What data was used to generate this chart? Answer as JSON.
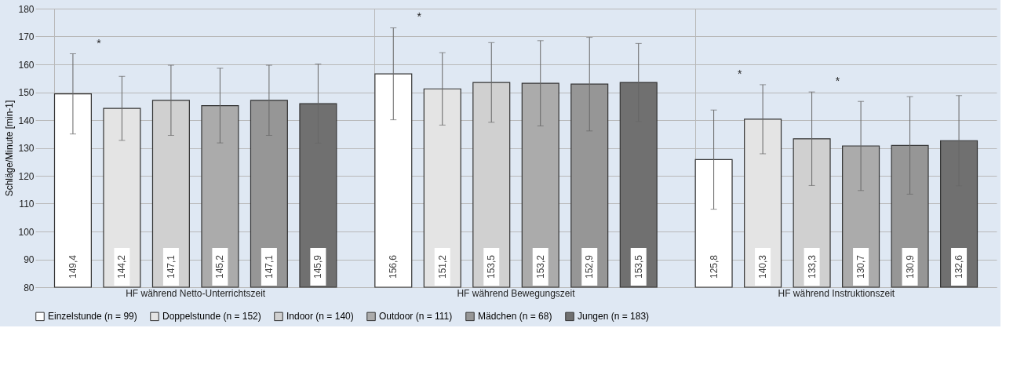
{
  "chart_data": {
    "type": "bar",
    "ylabel": "Schläge/Minute [min-1]",
    "categories": [
      "HF während Netto-Unterrichtszeit",
      "HF während Bewegungszeit",
      "HF während Instruktionszeit"
    ],
    "series": [
      {
        "name": "Einzelstunde (n = 99)",
        "color": "#ffffff",
        "values": [
          149.4,
          156.6,
          125.8
        ],
        "errors": [
          14.4,
          16.5,
          17.8
        ],
        "value_labels": [
          "149,4",
          "156,6",
          "125,8"
        ]
      },
      {
        "name": "Doppelstunde (n = 152)",
        "color": "#e4e4e4",
        "values": [
          144.2,
          151.2,
          140.3
        ],
        "errors": [
          11.5,
          13,
          12.4
        ],
        "value_labels": [
          "144,2",
          "151,2",
          "140,3"
        ]
      },
      {
        "name": "Indoor (n = 140)",
        "color": "#d0d0d0",
        "values": [
          147.1,
          153.5,
          133.3
        ],
        "errors": [
          12.6,
          14.3,
          16.8
        ],
        "value_labels": [
          "147,1",
          "153,5",
          "133,3"
        ]
      },
      {
        "name": "Outdoor (n = 111)",
        "color": "#ababab",
        "values": [
          145.2,
          153.2,
          130.7
        ],
        "errors": [
          13.4,
          15.3,
          16
        ],
        "value_labels": [
          "145,2",
          "153,2",
          "130,7"
        ]
      },
      {
        "name": "Mädchen (n = 68)",
        "color": "#969696",
        "values": [
          147.1,
          152.9,
          130.9
        ],
        "errors": [
          12.6,
          16.8,
          17.5
        ],
        "value_labels": [
          "147,1",
          "152,9",
          "130,9"
        ]
      },
      {
        "name": "Jungen (n = 183)",
        "color": "#707070",
        "values": [
          145.9,
          153.5,
          132.6
        ],
        "errors": [
          14.2,
          14,
          16.2
        ],
        "value_labels": [
          "145,9",
          "153,5",
          "132,6"
        ]
      }
    ],
    "ylim": [
      80,
      180
    ],
    "yticks": [
      80,
      90,
      100,
      110,
      120,
      130,
      140,
      150,
      160,
      170,
      180
    ],
    "grid": true,
    "legend": "bottom",
    "annotations": [
      "*",
      "*",
      "*",
      "*"
    ]
  }
}
